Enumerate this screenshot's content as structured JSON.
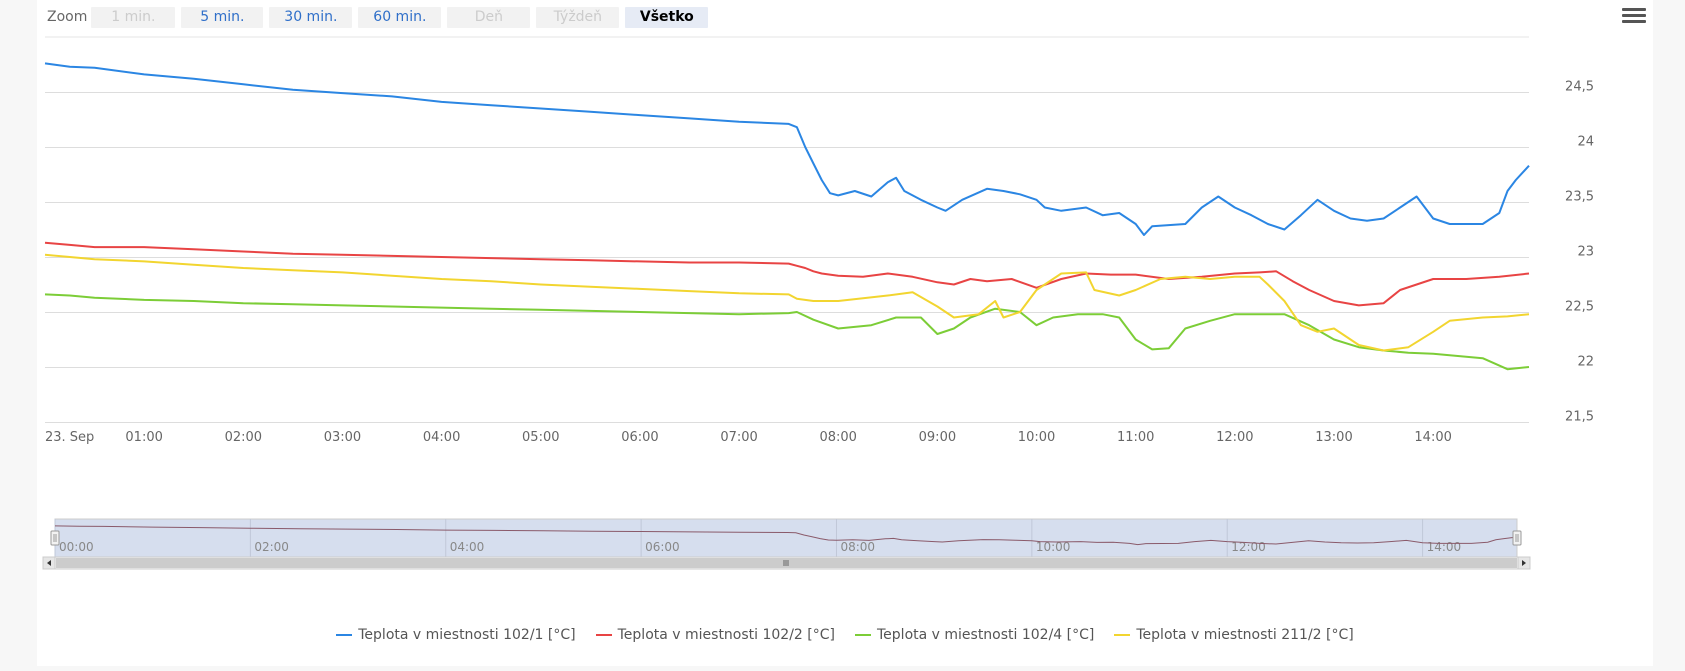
{
  "toolbar": {
    "zoom_label": "Zoom",
    "buttons": [
      {
        "label": "1 min.",
        "state": "disabled"
      },
      {
        "label": "5 min.",
        "state": "enabled"
      },
      {
        "label": "30 min.",
        "state": "enabled"
      },
      {
        "label": "60 min.",
        "state": "enabled"
      },
      {
        "label": "Deň",
        "state": "disabled"
      },
      {
        "label": "Týždeň",
        "state": "disabled"
      },
      {
        "label": "Všetko",
        "state": "selected"
      }
    ],
    "menu_icon": "hamburger-menu-icon"
  },
  "chart_data": {
    "type": "line",
    "title": "",
    "xlabel": "",
    "ylabel": "",
    "ylim": [
      21.5,
      25
    ],
    "xlim": [
      "00:00",
      "14:58"
    ],
    "grid": true,
    "legend_position": "bottom-center",
    "y_ticks": [
      "24,5",
      "24",
      "23,5",
      "23",
      "22,5",
      "22",
      "21,5"
    ],
    "y_tick_values": [
      24.5,
      24,
      23.5,
      23,
      22.5,
      22,
      21.5
    ],
    "x_ticks": [
      "23. Sep",
      "01:00",
      "02:00",
      "03:00",
      "04:00",
      "05:00",
      "06:00",
      "07:00",
      "08:00",
      "09:00",
      "10:00",
      "11:00",
      "12:00",
      "13:00",
      "14:00"
    ],
    "x_tick_values": [
      "00:00",
      "01:00",
      "02:00",
      "03:00",
      "04:00",
      "05:00",
      "06:00",
      "07:00",
      "08:00",
      "09:00",
      "10:00",
      "11:00",
      "12:00",
      "13:00",
      "14:00"
    ],
    "series": [
      {
        "name": "Teplota v miestnosti 102/1 [°C]",
        "color": "#2b86e3",
        "points": [
          [
            "00:00",
            24.76
          ],
          [
            "00:15",
            24.73
          ],
          [
            "00:30",
            24.72
          ],
          [
            "01:00",
            24.66
          ],
          [
            "01:30",
            24.62
          ],
          [
            "02:00",
            24.57
          ],
          [
            "02:30",
            24.52
          ],
          [
            "03:00",
            24.49
          ],
          [
            "03:30",
            24.46
          ],
          [
            "04:00",
            24.41
          ],
          [
            "04:30",
            24.38
          ],
          [
            "05:00",
            24.35
          ],
          [
            "05:30",
            24.32
          ],
          [
            "06:00",
            24.29
          ],
          [
            "06:30",
            24.26
          ],
          [
            "07:00",
            24.23
          ],
          [
            "07:30",
            24.21
          ],
          [
            "07:35",
            24.18
          ],
          [
            "07:40",
            24.0
          ],
          [
            "07:45",
            23.85
          ],
          [
            "07:50",
            23.7
          ],
          [
            "07:55",
            23.58
          ],
          [
            "08:00",
            23.56
          ],
          [
            "08:10",
            23.6
          ],
          [
            "08:20",
            23.55
          ],
          [
            "08:30",
            23.68
          ],
          [
            "08:35",
            23.72
          ],
          [
            "08:40",
            23.6
          ],
          [
            "08:50",
            23.52
          ],
          [
            "09:00",
            23.45
          ],
          [
            "09:05",
            23.42
          ],
          [
            "09:15",
            23.52
          ],
          [
            "09:30",
            23.62
          ],
          [
            "09:40",
            23.6
          ],
          [
            "09:50",
            23.57
          ],
          [
            "10:00",
            23.52
          ],
          [
            "10:05",
            23.45
          ],
          [
            "10:15",
            23.42
          ],
          [
            "10:30",
            23.45
          ],
          [
            "10:40",
            23.38
          ],
          [
            "10:50",
            23.4
          ],
          [
            "11:00",
            23.3
          ],
          [
            "11:05",
            23.2
          ],
          [
            "11:10",
            23.28
          ],
          [
            "11:30",
            23.3
          ],
          [
            "11:40",
            23.45
          ],
          [
            "11:50",
            23.55
          ],
          [
            "12:00",
            23.45
          ],
          [
            "12:10",
            23.38
          ],
          [
            "12:20",
            23.3
          ],
          [
            "12:30",
            23.25
          ],
          [
            "12:40",
            23.38
          ],
          [
            "12:50",
            23.52
          ],
          [
            "13:00",
            23.42
          ],
          [
            "13:10",
            23.35
          ],
          [
            "13:20",
            23.33
          ],
          [
            "13:30",
            23.35
          ],
          [
            "13:40",
            23.45
          ],
          [
            "13:50",
            23.55
          ],
          [
            "14:00",
            23.35
          ],
          [
            "14:10",
            23.3
          ],
          [
            "14:20",
            23.3
          ],
          [
            "14:30",
            23.3
          ],
          [
            "14:40",
            23.4
          ],
          [
            "14:45",
            23.6
          ],
          [
            "14:50",
            23.7
          ],
          [
            "14:58",
            23.83
          ]
        ]
      },
      {
        "name": "Teplota v miestnosti 102/2 [°C]",
        "color": "#e84444",
        "points": [
          [
            "00:00",
            23.13
          ],
          [
            "00:15",
            23.11
          ],
          [
            "00:30",
            23.09
          ],
          [
            "01:00",
            23.09
          ],
          [
            "01:30",
            23.07
          ],
          [
            "02:00",
            23.05
          ],
          [
            "02:30",
            23.03
          ],
          [
            "03:00",
            23.02
          ],
          [
            "03:30",
            23.01
          ],
          [
            "04:00",
            23.0
          ],
          [
            "04:30",
            22.99
          ],
          [
            "05:00",
            22.98
          ],
          [
            "05:30",
            22.97
          ],
          [
            "06:00",
            22.96
          ],
          [
            "06:30",
            22.95
          ],
          [
            "07:00",
            22.95
          ],
          [
            "07:30",
            22.94
          ],
          [
            "07:35",
            22.92
          ],
          [
            "07:40",
            22.9
          ],
          [
            "07:45",
            22.87
          ],
          [
            "07:50",
            22.85
          ],
          [
            "08:00",
            22.83
          ],
          [
            "08:15",
            22.82
          ],
          [
            "08:30",
            22.85
          ],
          [
            "08:45",
            22.82
          ],
          [
            "09:00",
            22.77
          ],
          [
            "09:10",
            22.75
          ],
          [
            "09:20",
            22.8
          ],
          [
            "09:30",
            22.78
          ],
          [
            "09:45",
            22.8
          ],
          [
            "10:00",
            22.72
          ],
          [
            "10:15",
            22.8
          ],
          [
            "10:30",
            22.85
          ],
          [
            "10:45",
            22.84
          ],
          [
            "11:00",
            22.84
          ],
          [
            "11:20",
            22.8
          ],
          [
            "11:40",
            22.82
          ],
          [
            "12:00",
            22.85
          ],
          [
            "12:15",
            22.86
          ],
          [
            "12:25",
            22.87
          ],
          [
            "12:35",
            22.78
          ],
          [
            "12:45",
            22.7
          ],
          [
            "13:00",
            22.6
          ],
          [
            "13:15",
            22.56
          ],
          [
            "13:30",
            22.58
          ],
          [
            "13:40",
            22.7
          ],
          [
            "14:00",
            22.8
          ],
          [
            "14:20",
            22.8
          ],
          [
            "14:40",
            22.82
          ],
          [
            "14:58",
            22.85
          ]
        ]
      },
      {
        "name": "Teplota v miestnosti 102/4 [°C]",
        "color": "#7ccd37",
        "points": [
          [
            "00:00",
            22.66
          ],
          [
            "00:15",
            22.65
          ],
          [
            "00:30",
            22.63
          ],
          [
            "01:00",
            22.61
          ],
          [
            "01:30",
            22.6
          ],
          [
            "02:00",
            22.58
          ],
          [
            "02:30",
            22.57
          ],
          [
            "03:00",
            22.56
          ],
          [
            "03:30",
            22.55
          ],
          [
            "04:00",
            22.54
          ],
          [
            "04:30",
            22.53
          ],
          [
            "05:00",
            22.52
          ],
          [
            "05:30",
            22.51
          ],
          [
            "06:00",
            22.5
          ],
          [
            "06:30",
            22.49
          ],
          [
            "07:00",
            22.48
          ],
          [
            "07:30",
            22.49
          ],
          [
            "07:35",
            22.5
          ],
          [
            "07:45",
            22.43
          ],
          [
            "08:00",
            22.35
          ],
          [
            "08:20",
            22.38
          ],
          [
            "08:35",
            22.45
          ],
          [
            "08:50",
            22.45
          ],
          [
            "09:00",
            22.3
          ],
          [
            "09:10",
            22.35
          ],
          [
            "09:20",
            22.45
          ],
          [
            "09:35",
            22.53
          ],
          [
            "09:50",
            22.5
          ],
          [
            "10:00",
            22.38
          ],
          [
            "10:10",
            22.45
          ],
          [
            "10:25",
            22.48
          ],
          [
            "10:40",
            22.48
          ],
          [
            "10:50",
            22.45
          ],
          [
            "11:00",
            22.25
          ],
          [
            "11:10",
            22.16
          ],
          [
            "11:20",
            22.17
          ],
          [
            "11:30",
            22.35
          ],
          [
            "11:45",
            22.42
          ],
          [
            "12:00",
            22.48
          ],
          [
            "12:15",
            22.48
          ],
          [
            "12:30",
            22.48
          ],
          [
            "12:45",
            22.38
          ],
          [
            "13:00",
            22.25
          ],
          [
            "13:15",
            22.18
          ],
          [
            "13:30",
            22.15
          ],
          [
            "13:45",
            22.13
          ],
          [
            "14:00",
            22.12
          ],
          [
            "14:15",
            22.1
          ],
          [
            "14:30",
            22.08
          ],
          [
            "14:45",
            21.98
          ],
          [
            "14:58",
            22.0
          ]
        ]
      },
      {
        "name": "Teplota v miestnosti 211/2 [°C]",
        "color": "#f2d530",
        "points": [
          [
            "00:00",
            23.02
          ],
          [
            "00:15",
            23.0
          ],
          [
            "00:30",
            22.98
          ],
          [
            "01:00",
            22.96
          ],
          [
            "01:30",
            22.93
          ],
          [
            "02:00",
            22.9
          ],
          [
            "02:30",
            22.88
          ],
          [
            "03:00",
            22.86
          ],
          [
            "03:30",
            22.83
          ],
          [
            "04:00",
            22.8
          ],
          [
            "04:30",
            22.78
          ],
          [
            "05:00",
            22.75
          ],
          [
            "05:30",
            22.73
          ],
          [
            "06:00",
            22.71
          ],
          [
            "06:30",
            22.69
          ],
          [
            "07:00",
            22.67
          ],
          [
            "07:30",
            22.66
          ],
          [
            "07:35",
            22.62
          ],
          [
            "07:45",
            22.6
          ],
          [
            "08:00",
            22.6
          ],
          [
            "08:30",
            22.65
          ],
          [
            "08:45",
            22.68
          ],
          [
            "09:00",
            22.55
          ],
          [
            "09:10",
            22.45
          ],
          [
            "09:25",
            22.48
          ],
          [
            "09:35",
            22.6
          ],
          [
            "09:40",
            22.45
          ],
          [
            "09:50",
            22.5
          ],
          [
            "10:00",
            22.7
          ],
          [
            "10:15",
            22.85
          ],
          [
            "10:30",
            22.86
          ],
          [
            "10:35",
            22.7
          ],
          [
            "10:50",
            22.65
          ],
          [
            "11:00",
            22.7
          ],
          [
            "11:15",
            22.8
          ],
          [
            "11:30",
            22.82
          ],
          [
            "11:45",
            22.8
          ],
          [
            "12:00",
            22.82
          ],
          [
            "12:15",
            22.82
          ],
          [
            "12:20",
            22.75
          ],
          [
            "12:30",
            22.6
          ],
          [
            "12:40",
            22.38
          ],
          [
            "12:50",
            22.32
          ],
          [
            "13:00",
            22.35
          ],
          [
            "13:15",
            22.2
          ],
          [
            "13:30",
            22.15
          ],
          [
            "13:45",
            22.18
          ],
          [
            "14:00",
            22.32
          ],
          [
            "14:10",
            22.42
          ],
          [
            "14:30",
            22.45
          ],
          [
            "14:45",
            22.46
          ],
          [
            "14:58",
            22.48
          ]
        ]
      }
    ]
  },
  "navigator": {
    "x_ticks": [
      "00:00",
      "02:00",
      "04:00",
      "06:00",
      "08:00",
      "10:00",
      "12:00",
      "14:00"
    ],
    "scrollbar_grip_icon": "grip-icon",
    "left_arrow_icon": "arrow-left-icon",
    "right_arrow_icon": "arrow-right-icon"
  }
}
